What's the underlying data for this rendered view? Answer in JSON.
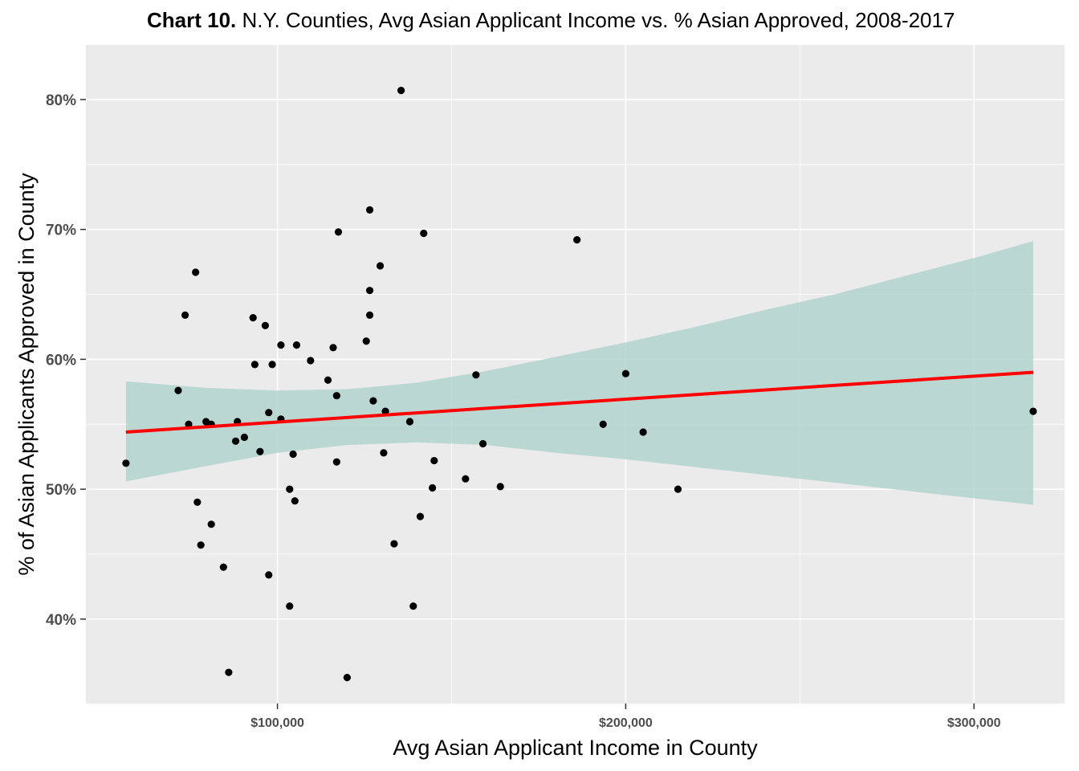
{
  "chart_data": {
    "type": "scatter",
    "title_bold": "Chart 10.",
    "title_rest": " N.Y. Counties, Avg Asian Applicant Income vs. % Asian Approved, 2008-2017",
    "xlabel": "Avg Asian Applicant Income in County",
    "ylabel": "% of Asian Applicants Approved in County",
    "xlim": [
      45000,
      326000
    ],
    "ylim": [
      33.5,
      84.2
    ],
    "x_ticks": [
      100000,
      200000,
      300000
    ],
    "x_tick_labels": [
      "$100,000",
      "$200,000",
      "$300,000"
    ],
    "y_ticks": [
      40,
      50,
      60,
      70,
      80
    ],
    "y_tick_labels": [
      "40%",
      "50%",
      "60%",
      "70%",
      "80%"
    ],
    "grid": true,
    "background": "#ebebeb",
    "point_color": "#000000",
    "trend_color": "#ff0000",
    "band_color": "#b3d4cd",
    "trend_line": {
      "x": [
        56500,
        317000
      ],
      "y": [
        54.4,
        59.0
      ]
    },
    "confidence_band": {
      "x": [
        56500,
        80000,
        100000,
        120000,
        140000,
        160000,
        180000,
        200000,
        220000,
        240000,
        260000,
        280000,
        300000,
        317000
      ],
      "upper": [
        58.3,
        57.8,
        57.6,
        57.7,
        58.2,
        59.1,
        60.2,
        61.3,
        62.5,
        63.8,
        65.0,
        66.4,
        67.8,
        69.1
      ],
      "lower": [
        50.6,
        51.8,
        52.8,
        53.4,
        53.6,
        53.4,
        52.8,
        52.3,
        51.7,
        51.1,
        50.5,
        49.9,
        49.3,
        48.8
      ]
    },
    "points": [
      {
        "x": 56500,
        "y": 52.0
      },
      {
        "x": 71500,
        "y": 57.6
      },
      {
        "x": 73500,
        "y": 63.4
      },
      {
        "x": 74500,
        "y": 55.0
      },
      {
        "x": 76500,
        "y": 66.7
      },
      {
        "x": 77000,
        "y": 49.0
      },
      {
        "x": 78000,
        "y": 45.7
      },
      {
        "x": 79500,
        "y": 55.2
      },
      {
        "x": 81000,
        "y": 47.3
      },
      {
        "x": 81000,
        "y": 55.0
      },
      {
        "x": 84500,
        "y": 44.0
      },
      {
        "x": 86000,
        "y": 35.9
      },
      {
        "x": 88000,
        "y": 53.7
      },
      {
        "x": 88500,
        "y": 55.2
      },
      {
        "x": 90500,
        "y": 54.0
      },
      {
        "x": 93000,
        "y": 63.2
      },
      {
        "x": 93500,
        "y": 59.6
      },
      {
        "x": 95000,
        "y": 52.9
      },
      {
        "x": 96500,
        "y": 62.6
      },
      {
        "x": 97500,
        "y": 55.9
      },
      {
        "x": 97500,
        "y": 43.4
      },
      {
        "x": 98500,
        "y": 59.6
      },
      {
        "x": 101000,
        "y": 55.4
      },
      {
        "x": 101000,
        "y": 61.1
      },
      {
        "x": 103500,
        "y": 50.0
      },
      {
        "x": 103500,
        "y": 41.0
      },
      {
        "x": 104500,
        "y": 52.7
      },
      {
        "x": 105000,
        "y": 49.1
      },
      {
        "x": 105500,
        "y": 61.1
      },
      {
        "x": 109500,
        "y": 59.9
      },
      {
        "x": 114500,
        "y": 58.4
      },
      {
        "x": 116000,
        "y": 60.9
      },
      {
        "x": 117000,
        "y": 57.2
      },
      {
        "x": 117000,
        "y": 52.1
      },
      {
        "x": 117500,
        "y": 69.8
      },
      {
        "x": 120000,
        "y": 35.5
      },
      {
        "x": 125500,
        "y": 61.4
      },
      {
        "x": 126500,
        "y": 71.5
      },
      {
        "x": 126500,
        "y": 65.3
      },
      {
        "x": 126500,
        "y": 63.4
      },
      {
        "x": 127500,
        "y": 56.8
      },
      {
        "x": 129500,
        "y": 67.2
      },
      {
        "x": 130500,
        "y": 52.8
      },
      {
        "x": 131000,
        "y": 56.0
      },
      {
        "x": 133500,
        "y": 45.8
      },
      {
        "x": 135500,
        "y": 80.7
      },
      {
        "x": 138000,
        "y": 55.2
      },
      {
        "x": 139000,
        "y": 41.0
      },
      {
        "x": 141000,
        "y": 47.9
      },
      {
        "x": 142000,
        "y": 69.7
      },
      {
        "x": 144500,
        "y": 50.1
      },
      {
        "x": 145000,
        "y": 52.2
      },
      {
        "x": 154000,
        "y": 50.8
      },
      {
        "x": 157000,
        "y": 58.8
      },
      {
        "x": 159000,
        "y": 53.5
      },
      {
        "x": 164000,
        "y": 50.2
      },
      {
        "x": 186000,
        "y": 69.2
      },
      {
        "x": 193500,
        "y": 55.0
      },
      {
        "x": 200000,
        "y": 58.9
      },
      {
        "x": 205000,
        "y": 54.4
      },
      {
        "x": 215000,
        "y": 50.0
      },
      {
        "x": 317000,
        "y": 56.0
      }
    ]
  }
}
